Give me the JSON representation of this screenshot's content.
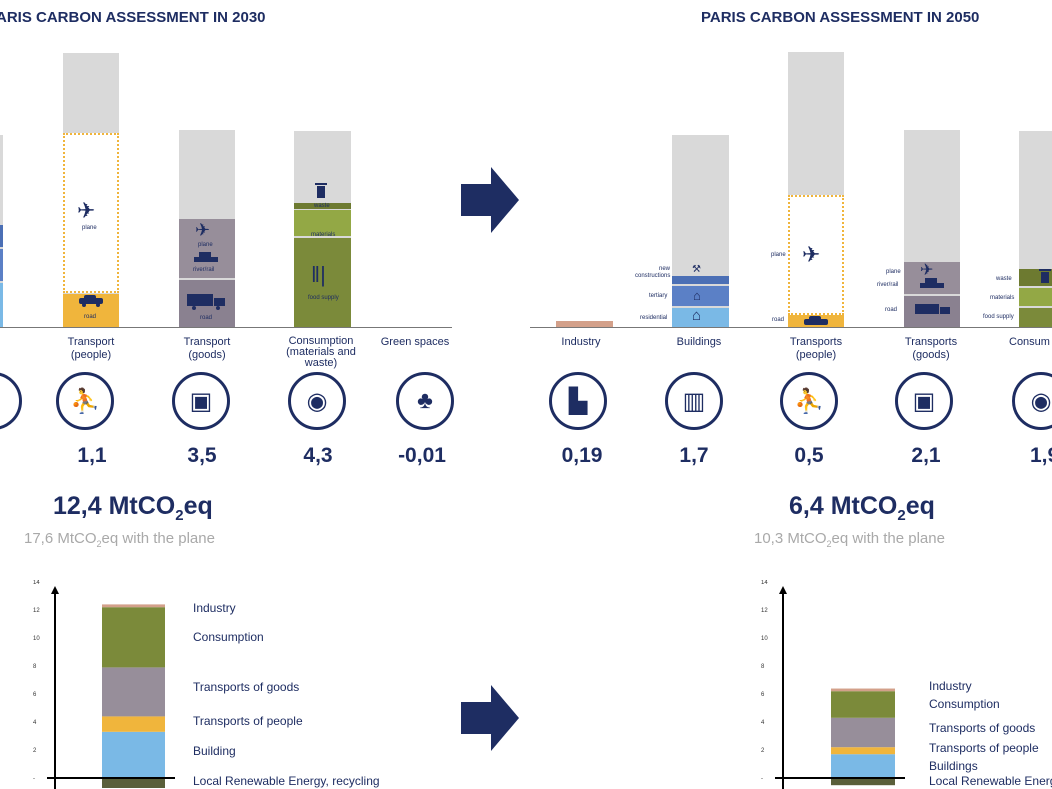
{
  "left": {
    "title": "ARIS CARBON ASSESSMENT IN 2030",
    "categories": [
      {
        "label": "Transport\n(people)",
        "value": "1,1",
        "icon": "people-seated-icon"
      },
      {
        "label": "Transport\n(goods)",
        "value": "3,5",
        "icon": "boxes-icon"
      },
      {
        "label": "Consumption\n(materials and\nwaste)",
        "value": "4,3",
        "icon": "consumption-icon"
      },
      {
        "label": "Green spaces",
        "value": "-0,01",
        "icon": "tree-icon"
      }
    ],
    "bar_labels": {
      "plane": "plane",
      "road": "road",
      "plane_goods": "plane",
      "river_rail": "river/rail",
      "road_goods": "road",
      "waste": "waste",
      "materials": "materials",
      "food_supply": "food supply"
    },
    "total_main": "12,4 MtCO",
    "total_sub": "2",
    "total_eq": "eq",
    "plane_note_a": "17,6 MtCO",
    "plane_note_sub": "2",
    "plane_note_b": "eq with the plane"
  },
  "right": {
    "title": "PARIS CARBON ASSESSMENT IN 2050",
    "categories": [
      {
        "label": "Industry",
        "value": "0,19",
        "icon": "factory-icon"
      },
      {
        "label": "Buildings",
        "value": "1,7",
        "icon": "buildings-icon"
      },
      {
        "label": "Transports\n(people)",
        "value": "0,5",
        "icon": "people-seated-icon"
      },
      {
        "label": "Transports\n(goods)",
        "value": "2,1",
        "icon": "boxes-icon"
      },
      {
        "label": "Consum",
        "value": "1,9",
        "icon": "consumption-icon"
      }
    ],
    "bar_labels": {
      "new_constructions": "new\nconstructions",
      "tertiary": "tertiary",
      "residential": "residential",
      "plane": "plane",
      "road": "road",
      "plane_goods": "plane",
      "river_rail": "river/rail",
      "road_goods": "road",
      "waste": "waste",
      "materials": "materials",
      "food_supply": "food supply"
    },
    "total_main": "6,4 MtCO",
    "total_sub": "2",
    "total_eq": "eq",
    "plane_note_a": "10,3 MtCO",
    "plane_note_sub": "2",
    "plane_note_b": "eq with the plane"
  },
  "chart_data": [
    {
      "type": "bar",
      "stacked": true,
      "yticks": [
        "-",
        "2",
        "4",
        "6",
        "8",
        "10",
        "12",
        "14"
      ],
      "ylim": [
        -0.5,
        14
      ],
      "series": [
        {
          "name": "Local Renewable Energy, recycling",
          "value": -0.5,
          "color": "#5a5f3a"
        },
        {
          "name": "Building",
          "value": 3.3,
          "color": "#7ab9e6"
        },
        {
          "name": "Transports of people",
          "value": 1.1,
          "color": "#f0b53c"
        },
        {
          "name": "Transports of goods",
          "value": 3.5,
          "color": "#978e9a"
        },
        {
          "name": "Consumption",
          "value": 4.3,
          "color": "#7b8a3a"
        },
        {
          "name": "Industry",
          "value": 0.2,
          "color": "#d3a08a"
        }
      ]
    },
    {
      "type": "bar",
      "stacked": true,
      "yticks": [
        "-",
        "2",
        "4",
        "6",
        "8",
        "10",
        "12",
        "14"
      ],
      "ylim": [
        -0.5,
        14
      ],
      "series": [
        {
          "name": "Local Renewable Energy",
          "value": -0.3,
          "color": "#5a5f3a"
        },
        {
          "name": "Buildings",
          "value": 1.7,
          "color": "#7ab9e6"
        },
        {
          "name": "Transports of people",
          "value": 0.5,
          "color": "#f0b53c"
        },
        {
          "name": "Transports of goods",
          "value": 2.1,
          "color": "#978e9a"
        },
        {
          "name": "Consumption",
          "value": 1.9,
          "color": "#7b8a3a"
        },
        {
          "name": "Industry",
          "value": 0.19,
          "color": "#d3a08a"
        }
      ]
    }
  ]
}
